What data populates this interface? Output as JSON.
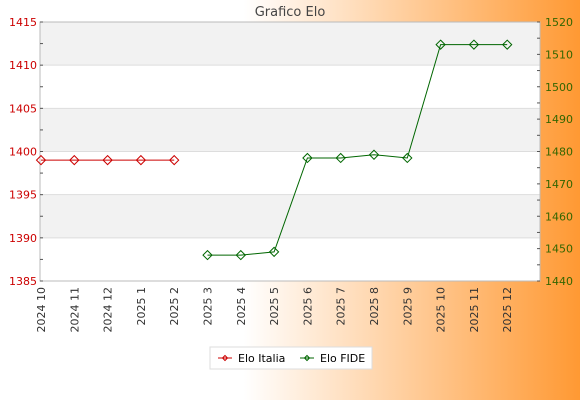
{
  "chart_data": {
    "type": "line",
    "title": "Grafico Elo",
    "categories": [
      "2024 10",
      "2024 11",
      "2024 12",
      "2025 1",
      "2025 2",
      "2025 3",
      "2025 4",
      "2025 5",
      "2025 6",
      "2025 7",
      "2025 8",
      "2025 9",
      "2025 10",
      "2025 11",
      "2025 12"
    ],
    "left_axis": {
      "ylim": [
        1385,
        1415
      ],
      "ticks": [
        1385,
        1390,
        1395,
        1400,
        1405,
        1410,
        1415
      ],
      "color": "#cc0000"
    },
    "right_axis": {
      "ylim": [
        1440,
        1520
      ],
      "ticks": [
        1440,
        1450,
        1460,
        1470,
        1480,
        1490,
        1500,
        1510,
        1520
      ],
      "color": "#336600"
    },
    "series": [
      {
        "name": "Elo Italia",
        "axis": "left",
        "color": "#cc0000",
        "values": [
          1399,
          1399,
          1399,
          1399,
          1399,
          null,
          null,
          null,
          null,
          null,
          null,
          null,
          null,
          null,
          null
        ]
      },
      {
        "name": "Elo FIDE",
        "axis": "right",
        "color": "#006600",
        "values": [
          null,
          null,
          null,
          null,
          null,
          1448,
          1448,
          1449,
          1478,
          1478,
          1479,
          1478,
          1513,
          1513,
          1513
        ]
      }
    ],
    "grid": true,
    "legend": "bottom-center"
  },
  "colors": {
    "background_light": "#ffffff",
    "background_dark": "#ff9933",
    "plot_band": "#f2f2f2",
    "grid": "#dddddd",
    "title": "#444444",
    "tick_text": "#333333"
  }
}
